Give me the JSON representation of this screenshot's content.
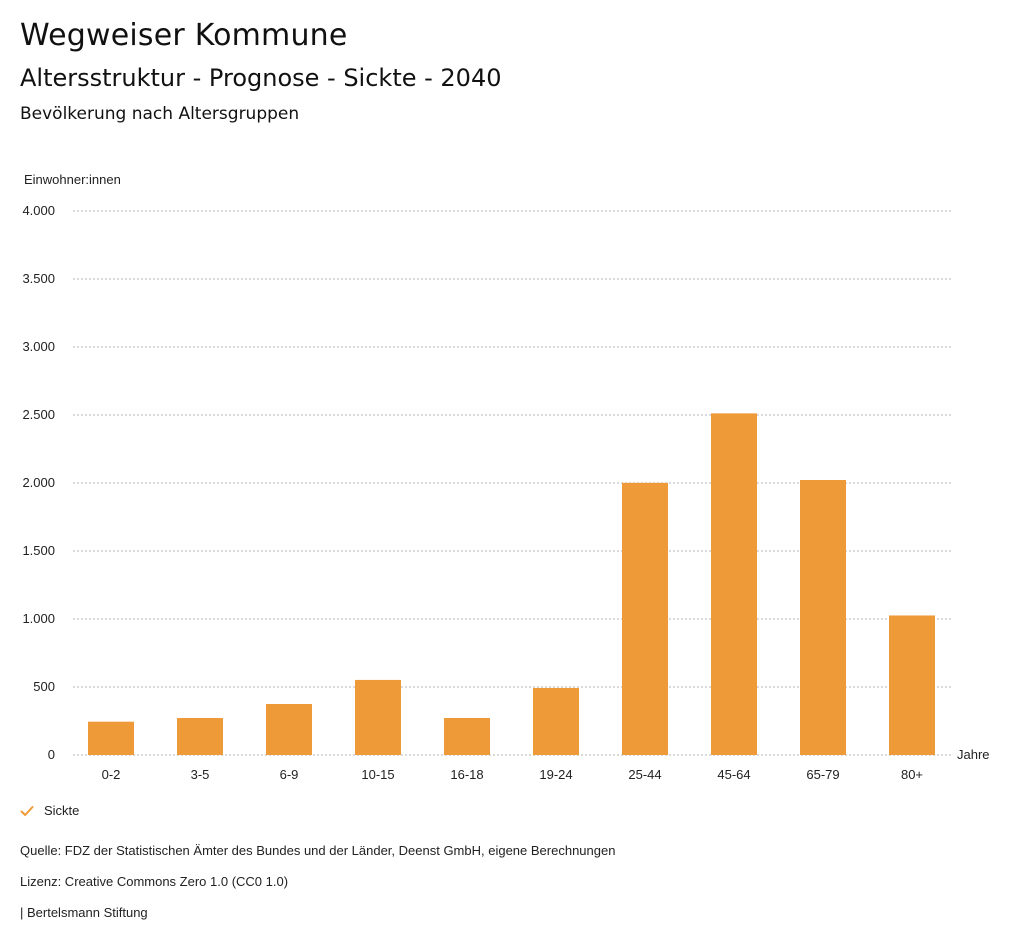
{
  "header": {
    "brand_title": "Wegweiser Kommune",
    "chart_title": "Altersstruktur - Prognose - Sickte - 2040",
    "chart_subtitle": "Bevölkerung nach Altersgruppen"
  },
  "chart_data": {
    "type": "bar",
    "categories": [
      "0-2",
      "3-5",
      "6-9",
      "10-15",
      "16-18",
      "19-24",
      "25-44",
      "45-64",
      "65-79",
      "80+"
    ],
    "series": [
      {
        "name": "Sickte",
        "values": [
          245,
          272,
          375,
          552,
          272,
          493,
          2001,
          2512,
          2022,
          1026
        ]
      }
    ],
    "ylabel": "Einwohner:innen",
    "xlabel": "Jahre",
    "ylim": [
      0,
      4000
    ],
    "yticks": [
      0,
      500,
      1000,
      1500,
      2000,
      2500,
      3000,
      3500,
      4000
    ],
    "ytick_labels": [
      "0",
      "500",
      "1.000",
      "1.500",
      "2.000",
      "2.500",
      "3.000",
      "3.500",
      "4.000"
    ],
    "grid": true,
    "legend": "bottom-left",
    "bar_color": "#ee9a38"
  },
  "legend": {
    "label": "Sickte",
    "check_color": "#ee9a38"
  },
  "footer": {
    "source": "Quelle: FDZ der Statistischen Ämter des Bundes und der Länder, Deenst GmbH, eigene Berechnungen",
    "license": "Lizenz: Creative Commons Zero 1.0 (CC0 1.0)",
    "publisher": "| Bertelsmann Stiftung"
  }
}
